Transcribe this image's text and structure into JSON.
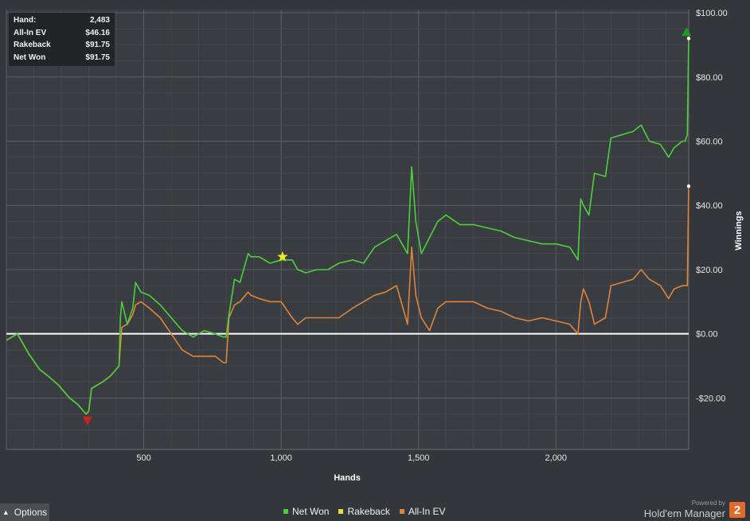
{
  "stats": [
    {
      "label": "Hand:",
      "value": "2,483"
    },
    {
      "label": "All-In EV",
      "value": "$46.16"
    },
    {
      "label": "Rakeback",
      "value": "$91.75"
    },
    {
      "label": "Net Won",
      "value": "$91.75"
    }
  ],
  "options": {
    "label": "Options"
  },
  "brand": {
    "powered": "Powered by",
    "name": "Hold'em Manager",
    "badge": "2"
  },
  "chart_data": {
    "type": "line",
    "xlabel": "Hands",
    "ylabel": "Winnings",
    "xlim": [
      0,
      2483
    ],
    "ylim": [
      -36,
      101
    ],
    "x_ticks": [
      500,
      1000,
      1500,
      2000
    ],
    "x_tick_labels": [
      "500",
      "1,000",
      "1,500",
      "2,000"
    ],
    "y_ticks": [
      100,
      80,
      60,
      40,
      20,
      0,
      -20
    ],
    "y_tick_labels": [
      "$100.00",
      "$80.00",
      "$60.00",
      "$40.00",
      "$20.00",
      "$0.00",
      "-$20.00"
    ],
    "grid": true,
    "legend": "bottom-center",
    "series": [
      {
        "name": "Net Won",
        "color": "#4cd13c",
        "x": [
          0,
          40,
          80,
          120,
          150,
          190,
          230,
          260,
          290,
          300,
          310,
          350,
          380,
          410,
          415,
          420,
          440,
          460,
          470,
          490,
          520,
          560,
          600,
          640,
          680,
          720,
          760,
          790,
          800,
          810,
          830,
          850,
          880,
          890,
          920,
          960,
          1000,
          1040,
          1060,
          1090,
          1130,
          1170,
          1210,
          1260,
          1300,
          1340,
          1380,
          1420,
          1460,
          1475,
          1490,
          1510,
          1540,
          1570,
          1600,
          1650,
          1700,
          1750,
          1800,
          1850,
          1900,
          1950,
          2000,
          2050,
          2080,
          2090,
          2100,
          2120,
          2140,
          2180,
          2200,
          2240,
          2280,
          2310,
          2340,
          2380,
          2410,
          2430,
          2460,
          2470,
          2478,
          2483
        ],
        "values": [
          -2,
          0,
          -6,
          -11,
          -13,
          -16,
          -20,
          -22,
          -25,
          -24,
          -17,
          -15,
          -13,
          -10,
          5,
          10,
          3,
          8,
          16,
          13,
          12,
          9,
          5,
          1,
          -1,
          1,
          0,
          -1,
          -1,
          6,
          17,
          16,
          25,
          24,
          24,
          22,
          23,
          23,
          20,
          19,
          20,
          20,
          22,
          23,
          22,
          27,
          29,
          31,
          25,
          52,
          35,
          25,
          30,
          35,
          37,
          34,
          34,
          33,
          32,
          30,
          29,
          28,
          28,
          27,
          23,
          42,
          40,
          37,
          50,
          49,
          61,
          62,
          63,
          65,
          60,
          59,
          55,
          58,
          60,
          60,
          62,
          92
        ]
      },
      {
        "name": "Rakeback",
        "color": "#e8de3e",
        "x": [],
        "values": []
      },
      {
        "name": "All-In EV",
        "color": "#e0843c",
        "x": [
          0,
          40,
          80,
          120,
          150,
          190,
          230,
          260,
          290,
          300,
          310,
          350,
          380,
          410,
          415,
          420,
          440,
          460,
          470,
          490,
          520,
          560,
          600,
          640,
          680,
          720,
          760,
          790,
          800,
          810,
          830,
          850,
          880,
          890,
          920,
          960,
          1000,
          1040,
          1060,
          1090,
          1130,
          1170,
          1210,
          1260,
          1300,
          1340,
          1380,
          1420,
          1460,
          1475,
          1490,
          1510,
          1540,
          1570,
          1600,
          1650,
          1700,
          1750,
          1800,
          1850,
          1900,
          1950,
          2000,
          2050,
          2080,
          2090,
          2100,
          2120,
          2140,
          2180,
          2200,
          2240,
          2280,
          2310,
          2340,
          2380,
          2410,
          2430,
          2460,
          2470,
          2478,
          2483
        ],
        "values": [
          -2,
          0,
          -6,
          -11,
          -13,
          -16,
          -20,
          -22,
          -25,
          -24,
          -17,
          -15,
          -13,
          -10,
          -4,
          2,
          3,
          6,
          9,
          10,
          8,
          5,
          0,
          -5,
          -7,
          -7,
          -7,
          -9,
          -9,
          5,
          9,
          10,
          13,
          12,
          11,
          10,
          10,
          5,
          3,
          5,
          5,
          5,
          5,
          8,
          10,
          12,
          13,
          15,
          3,
          27,
          12,
          5,
          1,
          8,
          10,
          10,
          10,
          8,
          7,
          5,
          4,
          5,
          4,
          3,
          0,
          10,
          14,
          10,
          3,
          5,
          15,
          16,
          17,
          20,
          17,
          15,
          11,
          14,
          15,
          15,
          15,
          46
        ]
      }
    ],
    "markers": [
      {
        "name": "low-point",
        "shape": "triangle-down",
        "color": "#d21d1d",
        "x": 295,
        "y": -27
      },
      {
        "name": "star",
        "shape": "star",
        "color": "#f2e71c",
        "x": 1005,
        "y": 24
      },
      {
        "name": "high-point",
        "shape": "triangle-up",
        "color": "#1e9a1e",
        "x": 2475,
        "y": 94
      }
    ]
  }
}
